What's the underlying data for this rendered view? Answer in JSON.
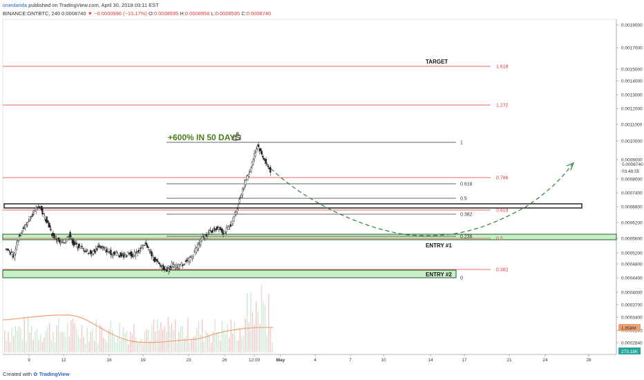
{
  "header": {
    "author": "oniedarida",
    "published": " published on TradingView.com, April 30, 2018 03:11 EST",
    "symbol": "BINANCE:ONTBTC, 240",
    "last": "0.0008740",
    "change": "−0.0000990 (−10.17%)",
    "o_label": "O:",
    "o": "0.0008595",
    "h_label": "H:",
    "h": "0.0008956",
    "l_label": "L:",
    "l": "0.0008595",
    "c_label": "C:",
    "c": "0.0008740"
  },
  "footer": {
    "created_with": "Created with",
    "brand": "TradingView"
  },
  "colors": {
    "red_level": "#e53935",
    "black_level": "#333333",
    "zone_fill": "#c8f0c8",
    "zone_stroke": "#1b5e20",
    "candle": "#222222",
    "volume_ma": "#f0a070",
    "projection": "#2e7d32"
  },
  "chart_data": {
    "type": "line",
    "title": "",
    "price_axis_ticks": [
      "0.0019000",
      "0.0017000",
      "0.0015000",
      "0.0014000",
      "0.0013000",
      "0.0012000",
      "0.0011000",
      "0.0010000",
      "0.0009000",
      "0.0008740",
      "0.0008000",
      "0.0007400",
      "0.0006800",
      "0.0006200",
      "0.0005600",
      "0.0005200",
      "0.0004800",
      "0.0004400",
      "0.0004000",
      "0.0003700",
      "0.0003400",
      "0.0003100",
      "0.0002840"
    ],
    "price_axis_last": "0.0008740",
    "price_axis_countdown": "03:48:55",
    "volume_ma_label": "1.858M",
    "volume_label": "273.18K",
    "time_axis_ticks": [
      "9",
      "12",
      "16",
      "19",
      "23",
      "26",
      "12:00",
      "May",
      "4",
      "7",
      "10",
      "14",
      "17",
      "21",
      "24",
      "28"
    ],
    "red_fib_levels": [
      {
        "label": "1.618",
        "price": 0.00152
      },
      {
        "label": "1.272",
        "price": 0.00121
      },
      {
        "label": "0.786",
        "price": 0.00081
      },
      {
        "label": "0.618",
        "price": 0.00066
      },
      {
        "label": "0.5",
        "price": 0.00057
      },
      {
        "label": "0.382",
        "price": 0.00048
      }
    ],
    "black_fib_levels": [
      {
        "label": "1",
        "price": 0.00099
      },
      {
        "label": "0.618",
        "price": 0.000765
      },
      {
        "label": "0.5",
        "price": 0.00069
      },
      {
        "label": "0.382",
        "price": 0.000625
      },
      {
        "label": "0.236",
        "price": 0.000535
      },
      {
        "label": "0",
        "price": 0.00044
      }
    ],
    "annotations": {
      "target": "TARGET",
      "entry1": "ENTRY #1",
      "entry2": "ENTRY #2",
      "headline": "+600% IN 50 DAYS",
      "hand_icon": "thumbs-up-icon"
    },
    "price_series": [
      0.00054,
      0.00053,
      0.0005,
      0.00058,
      0.00062,
      0.00064,
      0.00068,
      0.0007,
      0.00072,
      0.00068,
      0.00065,
      0.0006,
      0.00058,
      0.00056,
      0.00057,
      0.0006,
      0.00056,
      0.00055,
      0.00054,
      0.00053,
      0.00052,
      0.00053,
      0.00055,
      0.00054,
      0.00053,
      0.00052,
      0.00052,
      0.00051,
      0.00051,
      0.00052,
      0.00051,
      0.00053,
      0.00054,
      0.00056,
      0.00052,
      0.00049,
      0.00047,
      0.00046,
      0.00045,
      0.00047,
      0.00046,
      0.00047,
      0.00048,
      0.00049,
      0.00052,
      0.00055,
      0.00058,
      0.0006,
      0.00061,
      0.00062,
      0.00063,
      0.00061,
      0.00062,
      0.00065,
      0.0007,
      0.00076,
      0.00082,
      0.00086,
      0.00092,
      0.00098,
      0.00094,
      0.0009,
      0.00087
    ]
  }
}
